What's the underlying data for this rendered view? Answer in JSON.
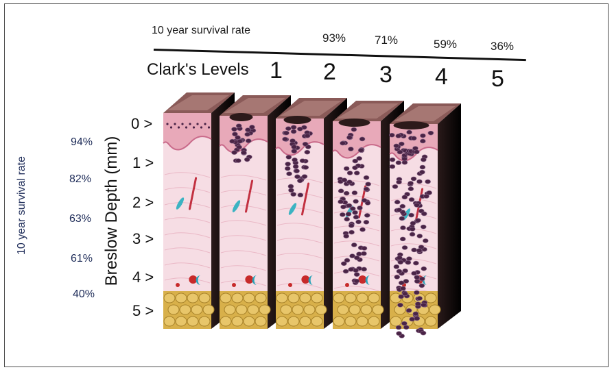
{
  "header": {
    "survival_label": "10 year survival rate",
    "clark_title": "Clark's Levels",
    "clark_levels": [
      "1",
      "2",
      "3",
      "4",
      "5"
    ],
    "clark_survival": [
      "93%",
      "71%",
      "59%",
      "36%"
    ]
  },
  "side": {
    "breslow_label": "Breslow Depth (mm)",
    "survival_label": "10 year survival rate",
    "depth_marks": [
      "0 >",
      "1 >",
      "2 >",
      "3 >",
      "4 >",
      "5 >"
    ],
    "breslow_survival": [
      "94%",
      "82%",
      "63%",
      "61%",
      "40%"
    ]
  },
  "colors": {
    "epidermis": "#e8a9b9",
    "dermis": "#f6dde4",
    "fat": "#d8b04a",
    "melanoma_cell": "#4a2446",
    "surface": "#8a5a58"
  },
  "blocks": [
    {
      "label": "1",
      "invasion": 0
    },
    {
      "label": "2",
      "invasion": 1
    },
    {
      "label": "3",
      "invasion": 2
    },
    {
      "label": "4",
      "invasion": 3
    },
    {
      "label": "5",
      "invasion": 4
    }
  ]
}
